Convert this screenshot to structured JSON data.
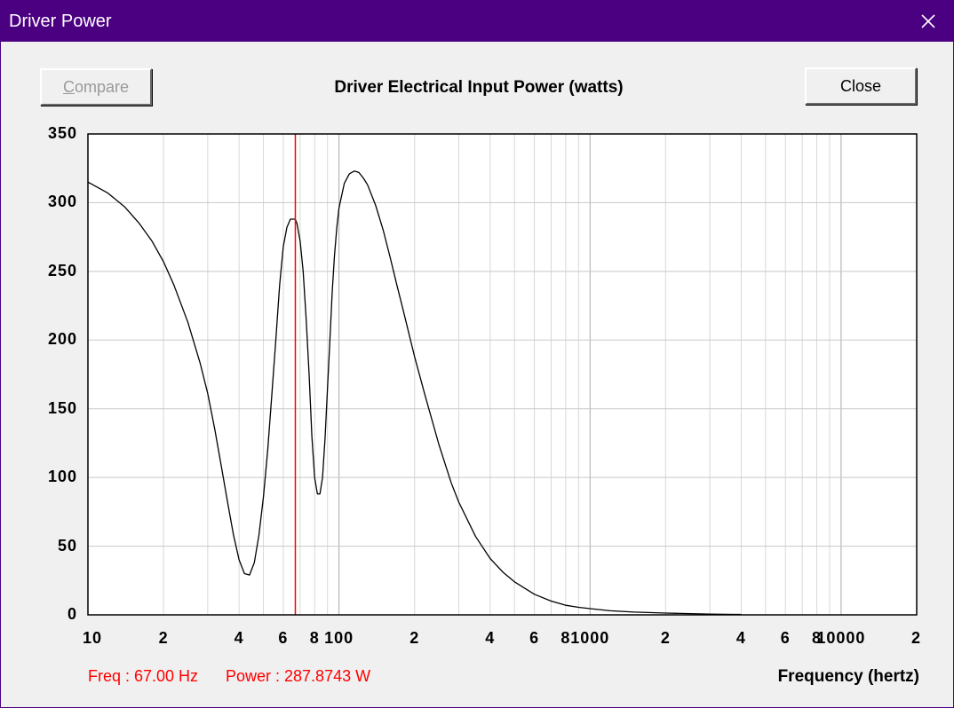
{
  "window": {
    "title": "Driver Power",
    "close_icon": "close-icon",
    "titlebar_color": "#4b0082"
  },
  "toolbar": {
    "compare_label": "Compare",
    "compare_enabled": false,
    "close_label": "Close"
  },
  "status": {
    "freq_text": "Freq : 67.00 Hz",
    "power_text": "Power : 287.8743 W"
  },
  "chart_data": {
    "type": "line",
    "title": "Driver Electrical Input Power (watts)",
    "xlabel": "Frequency (hertz)",
    "ylabel": "",
    "x_scale": "log",
    "xlim": [
      10,
      20000
    ],
    "ylim": [
      0,
      350
    ],
    "grid": true,
    "y_ticks": [
      "350",
      "300",
      "250",
      "200",
      "150",
      "100",
      "50",
      "0"
    ],
    "x_tick_labels": [
      {
        "value": 10,
        "label": "10"
      },
      {
        "value": 20,
        "label": "2"
      },
      {
        "value": 40,
        "label": "4"
      },
      {
        "value": 60,
        "label": "6"
      },
      {
        "value": 80,
        "label": "8"
      },
      {
        "value": 100,
        "label": "100"
      },
      {
        "value": 200,
        "label": "2"
      },
      {
        "value": 400,
        "label": "4"
      },
      {
        "value": 600,
        "label": "6"
      },
      {
        "value": 800,
        "label": "8"
      },
      {
        "value": 1000,
        "label": "1000"
      },
      {
        "value": 2000,
        "label": "2"
      },
      {
        "value": 4000,
        "label": "4"
      },
      {
        "value": 6000,
        "label": "6"
      },
      {
        "value": 8000,
        "label": "8"
      },
      {
        "value": 10000,
        "label": "10000"
      },
      {
        "value": 20000,
        "label": "2"
      }
    ],
    "cursor_x": 67.0,
    "cursor_color": "#ff0000",
    "line_color": "#000000",
    "series": [
      {
        "x": [
          10,
          12,
          14,
          16,
          18,
          20,
          22,
          25,
          28,
          30,
          32,
          34,
          36,
          38,
          40,
          42,
          44,
          46,
          48,
          50,
          52,
          54,
          56,
          58,
          60,
          62,
          64,
          66,
          67,
          68,
          70,
          72,
          74,
          76,
          78,
          80,
          82,
          84,
          86,
          88,
          90,
          92,
          94,
          96,
          98,
          100,
          105,
          110,
          115,
          120,
          125,
          130,
          140,
          150,
          160,
          170,
          180,
          200,
          220,
          250,
          280,
          300,
          350,
          400,
          450,
          500,
          600,
          700,
          800,
          900,
          1000,
          1200,
          1500,
          2000,
          2500,
          3000,
          3500,
          4000
        ],
        "y": [
          315,
          307,
          297,
          285,
          272,
          257,
          240,
          213,
          183,
          161,
          135,
          108,
          82,
          58,
          40,
          30,
          29,
          38,
          58,
          86,
          120,
          160,
          200,
          240,
          268,
          282,
          288,
          288,
          287.87,
          285,
          272,
          250,
          215,
          175,
          130,
          100,
          88,
          88,
          100,
          128,
          165,
          200,
          235,
          262,
          282,
          296,
          314,
          321,
          323,
          322,
          318,
          313,
          298,
          280,
          260,
          240,
          222,
          188,
          160,
          124,
          96,
          82,
          57,
          41,
          31,
          24,
          15,
          10,
          7,
          5.5,
          4.5,
          3,
          2,
          1.3,
          0.9,
          0.6,
          0.4,
          0.3
        ]
      }
    ]
  }
}
